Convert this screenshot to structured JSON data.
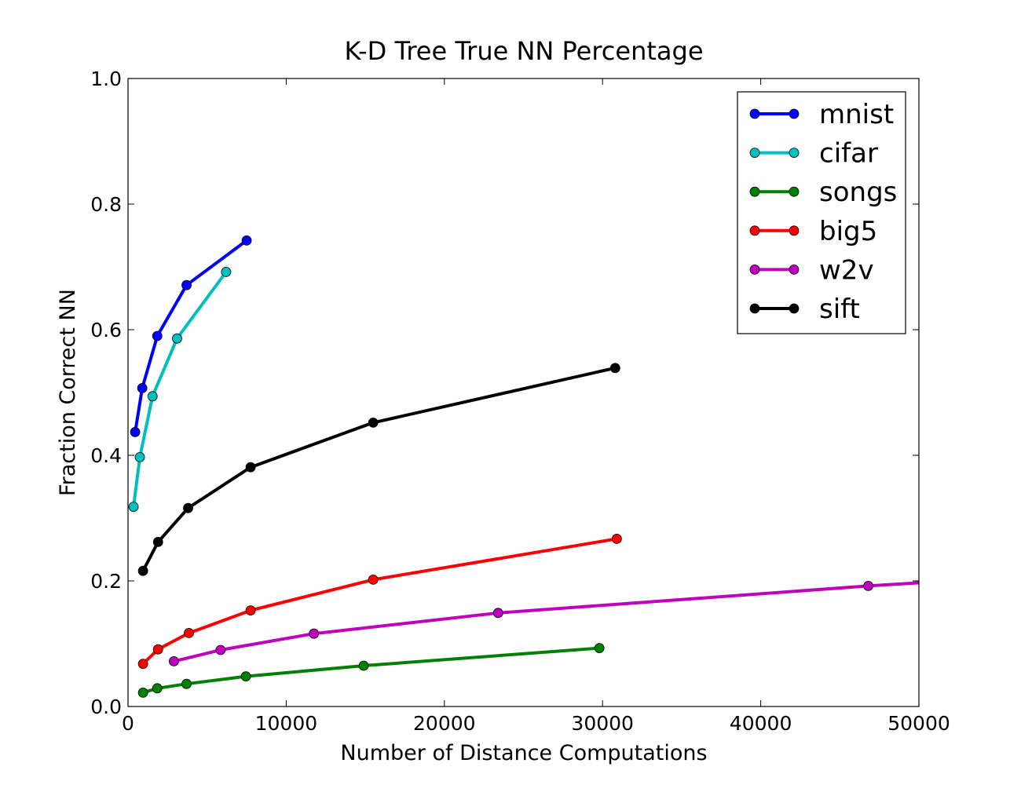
{
  "chart_data": {
    "type": "line",
    "title": "K-D Tree True NN Percentage",
    "xlabel": "Number of Distance Computations",
    "ylabel": "Fraction Correct NN",
    "xlim": [
      0,
      50000
    ],
    "ylim": [
      0.0,
      1.0
    ],
    "x_ticks": [
      0,
      10000,
      20000,
      30000,
      40000,
      50000
    ],
    "x_tick_labels": [
      "0",
      "10000",
      "20000",
      "30000",
      "40000",
      "50000"
    ],
    "y_ticks": [
      0.0,
      0.2,
      0.4,
      0.6,
      0.8,
      1.0
    ],
    "y_tick_labels": [
      "0.0",
      "0.2",
      "0.4",
      "0.6",
      "0.8",
      "1.0"
    ],
    "grid": false,
    "legend_position": "top-right",
    "series": [
      {
        "name": "mnist",
        "color": "#0000ff",
        "x": [
          450,
          900,
          1850,
          3700,
          7500
        ],
        "y": [
          0.437,
          0.507,
          0.59,
          0.671,
          0.742
        ]
      },
      {
        "name": "cifar",
        "color": "#00bfbf",
        "x": [
          350,
          750,
          1550,
          3100,
          6200
        ],
        "y": [
          0.318,
          0.397,
          0.494,
          0.586,
          0.692
        ]
      },
      {
        "name": "songs",
        "color": "#008000",
        "x": [
          950,
          1850,
          3700,
          7450,
          14900,
          29800
        ],
        "y": [
          0.022,
          0.029,
          0.036,
          0.048,
          0.065,
          0.093
        ]
      },
      {
        "name": "big5",
        "color": "#ff0000",
        "x": [
          950,
          1900,
          3850,
          7750,
          15500,
          30900
        ],
        "y": [
          0.068,
          0.091,
          0.117,
          0.153,
          0.202,
          0.267
        ]
      },
      {
        "name": "w2v",
        "color": "#bf00bf",
        "x": [
          2900,
          5850,
          11750,
          23400,
          46800,
          50000
        ],
        "y": [
          0.072,
          0.09,
          0.116,
          0.149,
          0.192,
          0.197
        ],
        "marker_mask": [
          true,
          true,
          true,
          true,
          true,
          false
        ]
      },
      {
        "name": "sift",
        "color": "#000000",
        "x": [
          950,
          1900,
          3800,
          7750,
          15500,
          30800
        ],
        "y": [
          0.216,
          0.262,
          0.316,
          0.381,
          0.452,
          0.539
        ]
      }
    ]
  }
}
